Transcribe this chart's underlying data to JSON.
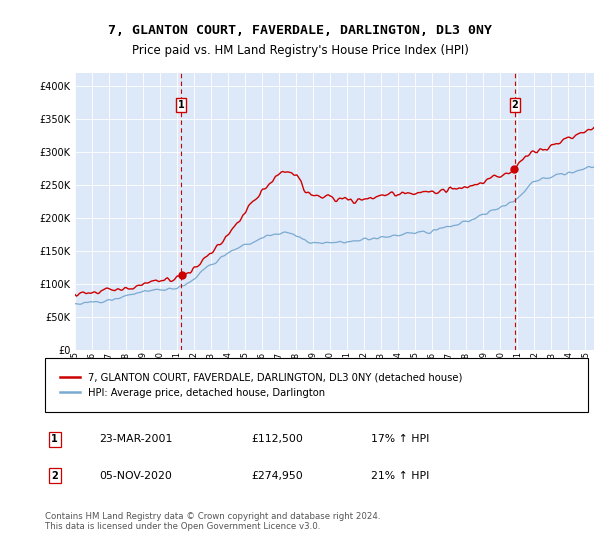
{
  "title": "7, GLANTON COURT, FAVERDALE, DARLINGTON, DL3 0NY",
  "subtitle": "Price paid vs. HM Land Registry's House Price Index (HPI)",
  "hpi_label": "HPI: Average price, detached house, Darlington",
  "property_label": "7, GLANTON COURT, FAVERDALE, DARLINGTON, DL3 0NY (detached house)",
  "footer": "Contains HM Land Registry data © Crown copyright and database right 2024.\nThis data is licensed under the Open Government Licence v3.0.",
  "transactions": [
    {
      "num": 1,
      "date": "23-MAR-2001",
      "price": 112500,
      "hpi_pct": "17% ↑ HPI",
      "x_year": 2001.23
    },
    {
      "num": 2,
      "date": "05-NOV-2020",
      "price": 274950,
      "hpi_pct": "21% ↑ HPI",
      "x_year": 2020.85
    }
  ],
  "property_color": "#cc0000",
  "hpi_color": "#7aaad0",
  "dot_color": "#cc0000",
  "background_color": "#dde8f8",
  "ylim": [
    0,
    420000
  ],
  "y_ticks": [
    0,
    50000,
    100000,
    150000,
    200000,
    250000,
    300000,
    350000,
    400000
  ],
  "xlim_start": 1995.0,
  "xlim_end": 2025.5
}
